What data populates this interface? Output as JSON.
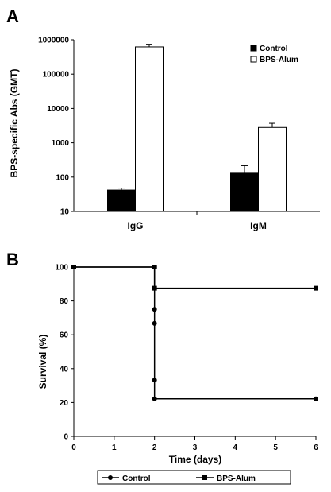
{
  "chart_data": [
    {
      "panel": "A",
      "type": "bar",
      "yscale": "log",
      "ylabel": "BPS-specific Abs (GMT)",
      "ylim": [
        10,
        1000000
      ],
      "yticks": [
        10,
        100,
        1000,
        10000,
        100000,
        1000000
      ],
      "categories": [
        "IgG",
        "IgM"
      ],
      "series": [
        {
          "name": "Control",
          "color": "#000000",
          "values": [
            42,
            130
          ],
          "error": [
            6,
            85
          ]
        },
        {
          "name": "BPS-Alum",
          "color": "#ffffff",
          "values": [
            620000,
            2800
          ],
          "error": [
            120000,
            900
          ]
        }
      ],
      "legend_position": "top-right"
    },
    {
      "panel": "B",
      "type": "line",
      "xlabel": "Time (days)",
      "ylabel": "Survival (%)",
      "xlim": [
        0,
        6
      ],
      "ylim": [
        0,
        100
      ],
      "xticks": [
        0,
        1,
        2,
        3,
        4,
        5,
        6
      ],
      "yticks": [
        0,
        20,
        40,
        60,
        80,
        100
      ],
      "series": [
        {
          "name": "Control",
          "marker": "circle",
          "points": [
            [
              0,
              100
            ],
            [
              2,
              100
            ],
            [
              2,
              75
            ],
            [
              2,
              66.7
            ],
            [
              2,
              33.3
            ],
            [
              2,
              22.2
            ],
            [
              6,
              22.2
            ]
          ]
        },
        {
          "name": "BPS-Alum",
          "marker": "square",
          "points": [
            [
              0,
              100
            ],
            [
              2,
              100
            ],
            [
              2,
              87.5
            ],
            [
              6,
              87.5
            ]
          ]
        }
      ],
      "legend_position": "bottom"
    }
  ]
}
